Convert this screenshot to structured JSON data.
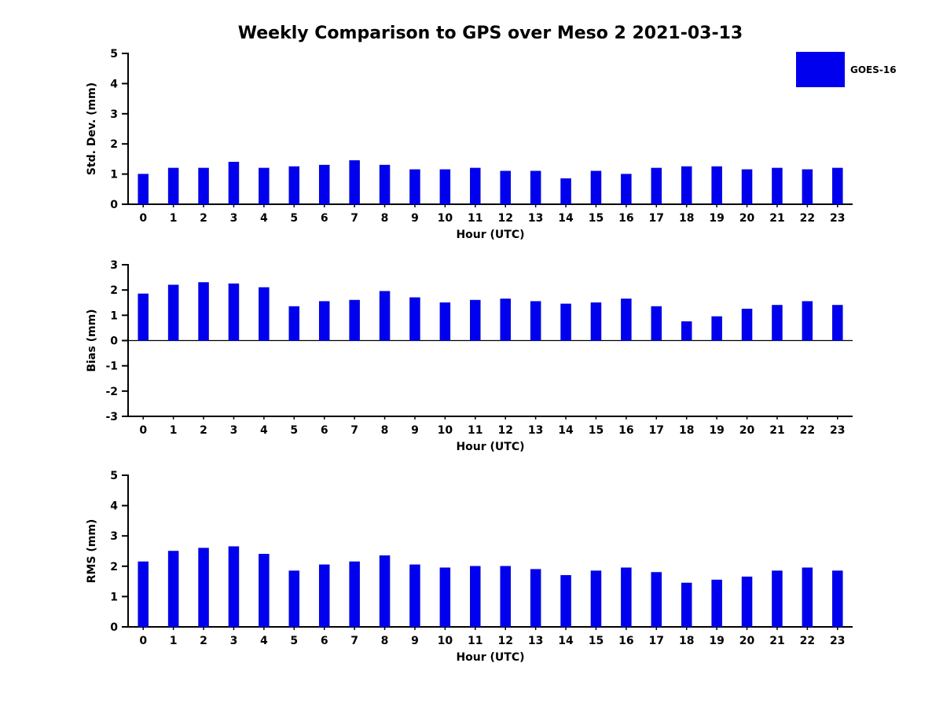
{
  "title": "Weekly Comparison to GPS over Meso 2 2021-03-13",
  "legend": {
    "label": "GOES-16",
    "color": "#0000ee"
  },
  "chart_data": [
    {
      "type": "bar",
      "id": "stddev",
      "title": "",
      "xlabel": "Hour (UTC)",
      "ylabel": "Std. Dev. (mm)",
      "ylim": [
        0,
        5
      ],
      "yticks": [
        0,
        1,
        2,
        3,
        4,
        5
      ],
      "categories": [
        "0",
        "1",
        "2",
        "3",
        "4",
        "5",
        "6",
        "7",
        "8",
        "9",
        "10",
        "11",
        "12",
        "13",
        "14",
        "15",
        "16",
        "17",
        "18",
        "19",
        "20",
        "21",
        "22",
        "23"
      ],
      "series": [
        {
          "name": "GOES-16",
          "values": [
            1.0,
            1.2,
            1.2,
            1.4,
            1.2,
            1.25,
            1.3,
            1.45,
            1.3,
            1.15,
            1.15,
            1.2,
            1.1,
            1.1,
            0.85,
            1.1,
            1.0,
            1.2,
            1.25,
            1.25,
            1.15,
            1.2,
            1.15,
            1.2
          ]
        }
      ],
      "bar_color": "#0000ee",
      "legend_position": "outside-top-right",
      "grid": false
    },
    {
      "type": "bar",
      "id": "bias",
      "title": "",
      "xlabel": "Hour (UTC)",
      "ylabel": "Bias (mm)",
      "ylim": [
        -3,
        3
      ],
      "yticks": [
        -3,
        -2,
        -1,
        0,
        1,
        2,
        3
      ],
      "categories": [
        "0",
        "1",
        "2",
        "3",
        "4",
        "5",
        "6",
        "7",
        "8",
        "9",
        "10",
        "11",
        "12",
        "13",
        "14",
        "15",
        "16",
        "17",
        "18",
        "19",
        "20",
        "21",
        "22",
        "23"
      ],
      "series": [
        {
          "name": "GOES-16",
          "values": [
            1.85,
            2.2,
            2.3,
            2.25,
            2.1,
            1.35,
            1.55,
            1.6,
            1.95,
            1.7,
            1.5,
            1.6,
            1.65,
            1.55,
            1.45,
            1.5,
            1.65,
            1.35,
            0.75,
            0.95,
            1.25,
            1.4,
            1.55,
            1.4
          ]
        }
      ],
      "bar_color": "#0000ee",
      "legend_position": "none",
      "grid": false
    },
    {
      "type": "bar",
      "id": "rms",
      "title": "",
      "xlabel": "Hour (UTC)",
      "ylabel": "RMS (mm)",
      "ylim": [
        0,
        5
      ],
      "yticks": [
        0,
        1,
        2,
        3,
        4,
        5
      ],
      "categories": [
        "0",
        "1",
        "2",
        "3",
        "4",
        "5",
        "6",
        "7",
        "8",
        "9",
        "10",
        "11",
        "12",
        "13",
        "14",
        "15",
        "16",
        "17",
        "18",
        "19",
        "20",
        "21",
        "22",
        "23"
      ],
      "series": [
        {
          "name": "GOES-16",
          "values": [
            2.15,
            2.5,
            2.6,
            2.65,
            2.4,
            1.85,
            2.05,
            2.15,
            2.35,
            2.05,
            1.95,
            2.0,
            2.0,
            1.9,
            1.7,
            1.85,
            1.95,
            1.8,
            1.45,
            1.55,
            1.65,
            1.85,
            1.95,
            1.85
          ]
        }
      ],
      "bar_color": "#0000ee",
      "legend_position": "none",
      "grid": false
    }
  ]
}
